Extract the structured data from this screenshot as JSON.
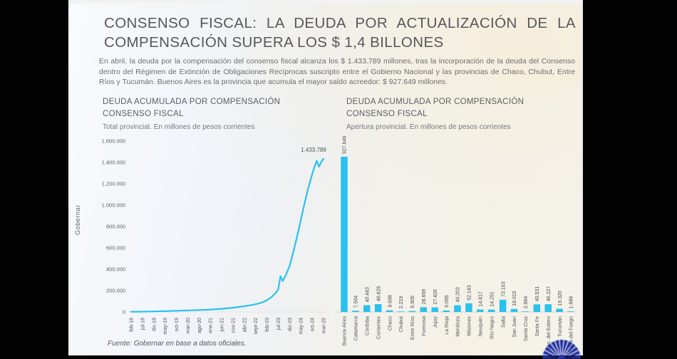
{
  "colors": {
    "accent": "#29c1ee",
    "logo_blue": "#2231a5",
    "frame": "#020202",
    "slide_bg_left": "#edf1f7",
    "slide_bg_right": "#f6eedb"
  },
  "slide": {
    "title": "CONSENSO FISCAL: LA DEUDA POR ACTUALIZACIÓN DE LA COMPENSACIÓN SUPERA LOS $ 1,4 BILLONES",
    "body": "En abril, la deuda por la compensación del consenso fiscal alcanza los $ 1.433.789 millones, tras la incorporación de la deuda del Consenso dentro del Régimen de Extinción de Obligaciones Recíprocas suscripto entre el Gobierno Nacional y las provincias de Chaco, Chubut, Entre Ríos y Tucumán. Buenos Aires es la provincia que acumula el mayor saldo acreedor: $ 927.649 millones.",
    "watermark": "Gobernar",
    "source": "Fuente: Gobernar en base a datos oficiales."
  },
  "chart_data": [
    {
      "type": "line",
      "title": "DEUDA ACUMULADA POR COMPENSACIÓN CONSENSO FISCAL",
      "subtitle": "Total provincial. En millones de pesos corrientes",
      "xlabel": "",
      "ylabel": "",
      "ylim": [
        0,
        1600000
      ],
      "grid": false,
      "legend": "none",
      "line_color": "#29c1ee",
      "y_ticks": [
        "1.600.000",
        "1.400.000",
        "1.200.000",
        "1.000.000",
        "800.000",
        "600.000",
        "400.000",
        "200.000",
        "0"
      ],
      "y_tick_values": [
        1600000,
        1400000,
        1200000,
        1000000,
        800000,
        600000,
        400000,
        200000,
        0
      ],
      "x_ticks": [
        "feb-18",
        "jul-18",
        "dic-18",
        "may-19",
        "oct-19",
        "mar-20",
        "ago-20",
        "ene-21",
        "jun-21",
        "nov-21",
        "abr-22",
        "sept-22",
        "feb-23",
        "jul-23",
        "dic-23",
        "may-24",
        "oct-24",
        "mar-25"
      ],
      "x_tick_month_step": 5,
      "annotation": "1.433.789",
      "final_value": 1433789,
      "points": [
        [
          0,
          2000
        ],
        [
          5,
          3500
        ],
        [
          10,
          5500
        ],
        [
          15,
          8000
        ],
        [
          20,
          11000
        ],
        [
          25,
          14500
        ],
        [
          30,
          18000
        ],
        [
          35,
          23000
        ],
        [
          40,
          30000
        ],
        [
          45,
          40000
        ],
        [
          50,
          54000
        ],
        [
          55,
          72000
        ],
        [
          58,
          90000
        ],
        [
          60,
          110000
        ],
        [
          62,
          140000
        ],
        [
          64,
          180000
        ],
        [
          65,
          215000
        ],
        [
          66,
          335000
        ],
        [
          67,
          290000
        ],
        [
          68,
          330000
        ],
        [
          70,
          430000
        ],
        [
          72,
          590000
        ],
        [
          74,
          770000
        ],
        [
          76,
          960000
        ],
        [
          78,
          1140000
        ],
        [
          80,
          1290000
        ],
        [
          81,
          1360000
        ],
        [
          82,
          1415000
        ],
        [
          83,
          1360000
        ],
        [
          84,
          1405000
        ],
        [
          85,
          1433789
        ]
      ]
    },
    {
      "type": "bar",
      "title": "DEUDA ACUMULADA POR COMPENSACIÓN CONSENSO FISCAL",
      "subtitle": "Apertura provincial. En millones de pesos corrientes",
      "grid": false,
      "legend": "none",
      "bar_color": "#29c1ee",
      "bars": [
        {
          "name": "Buenos Aires",
          "value": 927649,
          "label": "927.649"
        },
        {
          "name": "Catamarca",
          "value": 7504,
          "label": "7.504"
        },
        {
          "name": "Córdoba",
          "value": 40443,
          "label": "40.443"
        },
        {
          "name": "Corrientes",
          "value": 46629,
          "label": "46.629"
        },
        {
          "name": "Chaco",
          "value": 9998,
          "label": "9.998"
        },
        {
          "name": "Chubut",
          "value": 2219,
          "label": "2.219"
        },
        {
          "name": "Entre Ríos",
          "value": 5905,
          "label": "5.905"
        },
        {
          "name": "Formosa",
          "value": 28659,
          "label": "28.659"
        },
        {
          "name": "Jujuy",
          "value": 27426,
          "label": "27.426"
        },
        {
          "name": "La Rioja",
          "value": 9095,
          "label": "9.095"
        },
        {
          "name": "Mendoza",
          "value": 40203,
          "label": "40.203"
        },
        {
          "name": "Misiones",
          "value": 52143,
          "label": "52.143"
        },
        {
          "name": "Neuquén",
          "value": 14817,
          "label": "14.817"
        },
        {
          "name": "Río Negro",
          "value": 14251,
          "label": "14.251"
        },
        {
          "name": "Salta",
          "value": 73103,
          "label": "73.103"
        },
        {
          "name": "San Juan",
          "value": 18015,
          "label": "18.015"
        },
        {
          "name": "Santa Cruz",
          "value": 2964,
          "label": "2.964"
        },
        {
          "name": "Santa Fe",
          "value": 45531,
          "label": "45.531"
        },
        {
          "name": "Sgo. del Estero",
          "value": 46227,
          "label": "46.227"
        },
        {
          "name": "Tucumán",
          "value": 19320,
          "label": "19.320"
        },
        {
          "name": "Tierra del Fuego",
          "value": 1689,
          "label": "1.689"
        }
      ]
    }
  ]
}
